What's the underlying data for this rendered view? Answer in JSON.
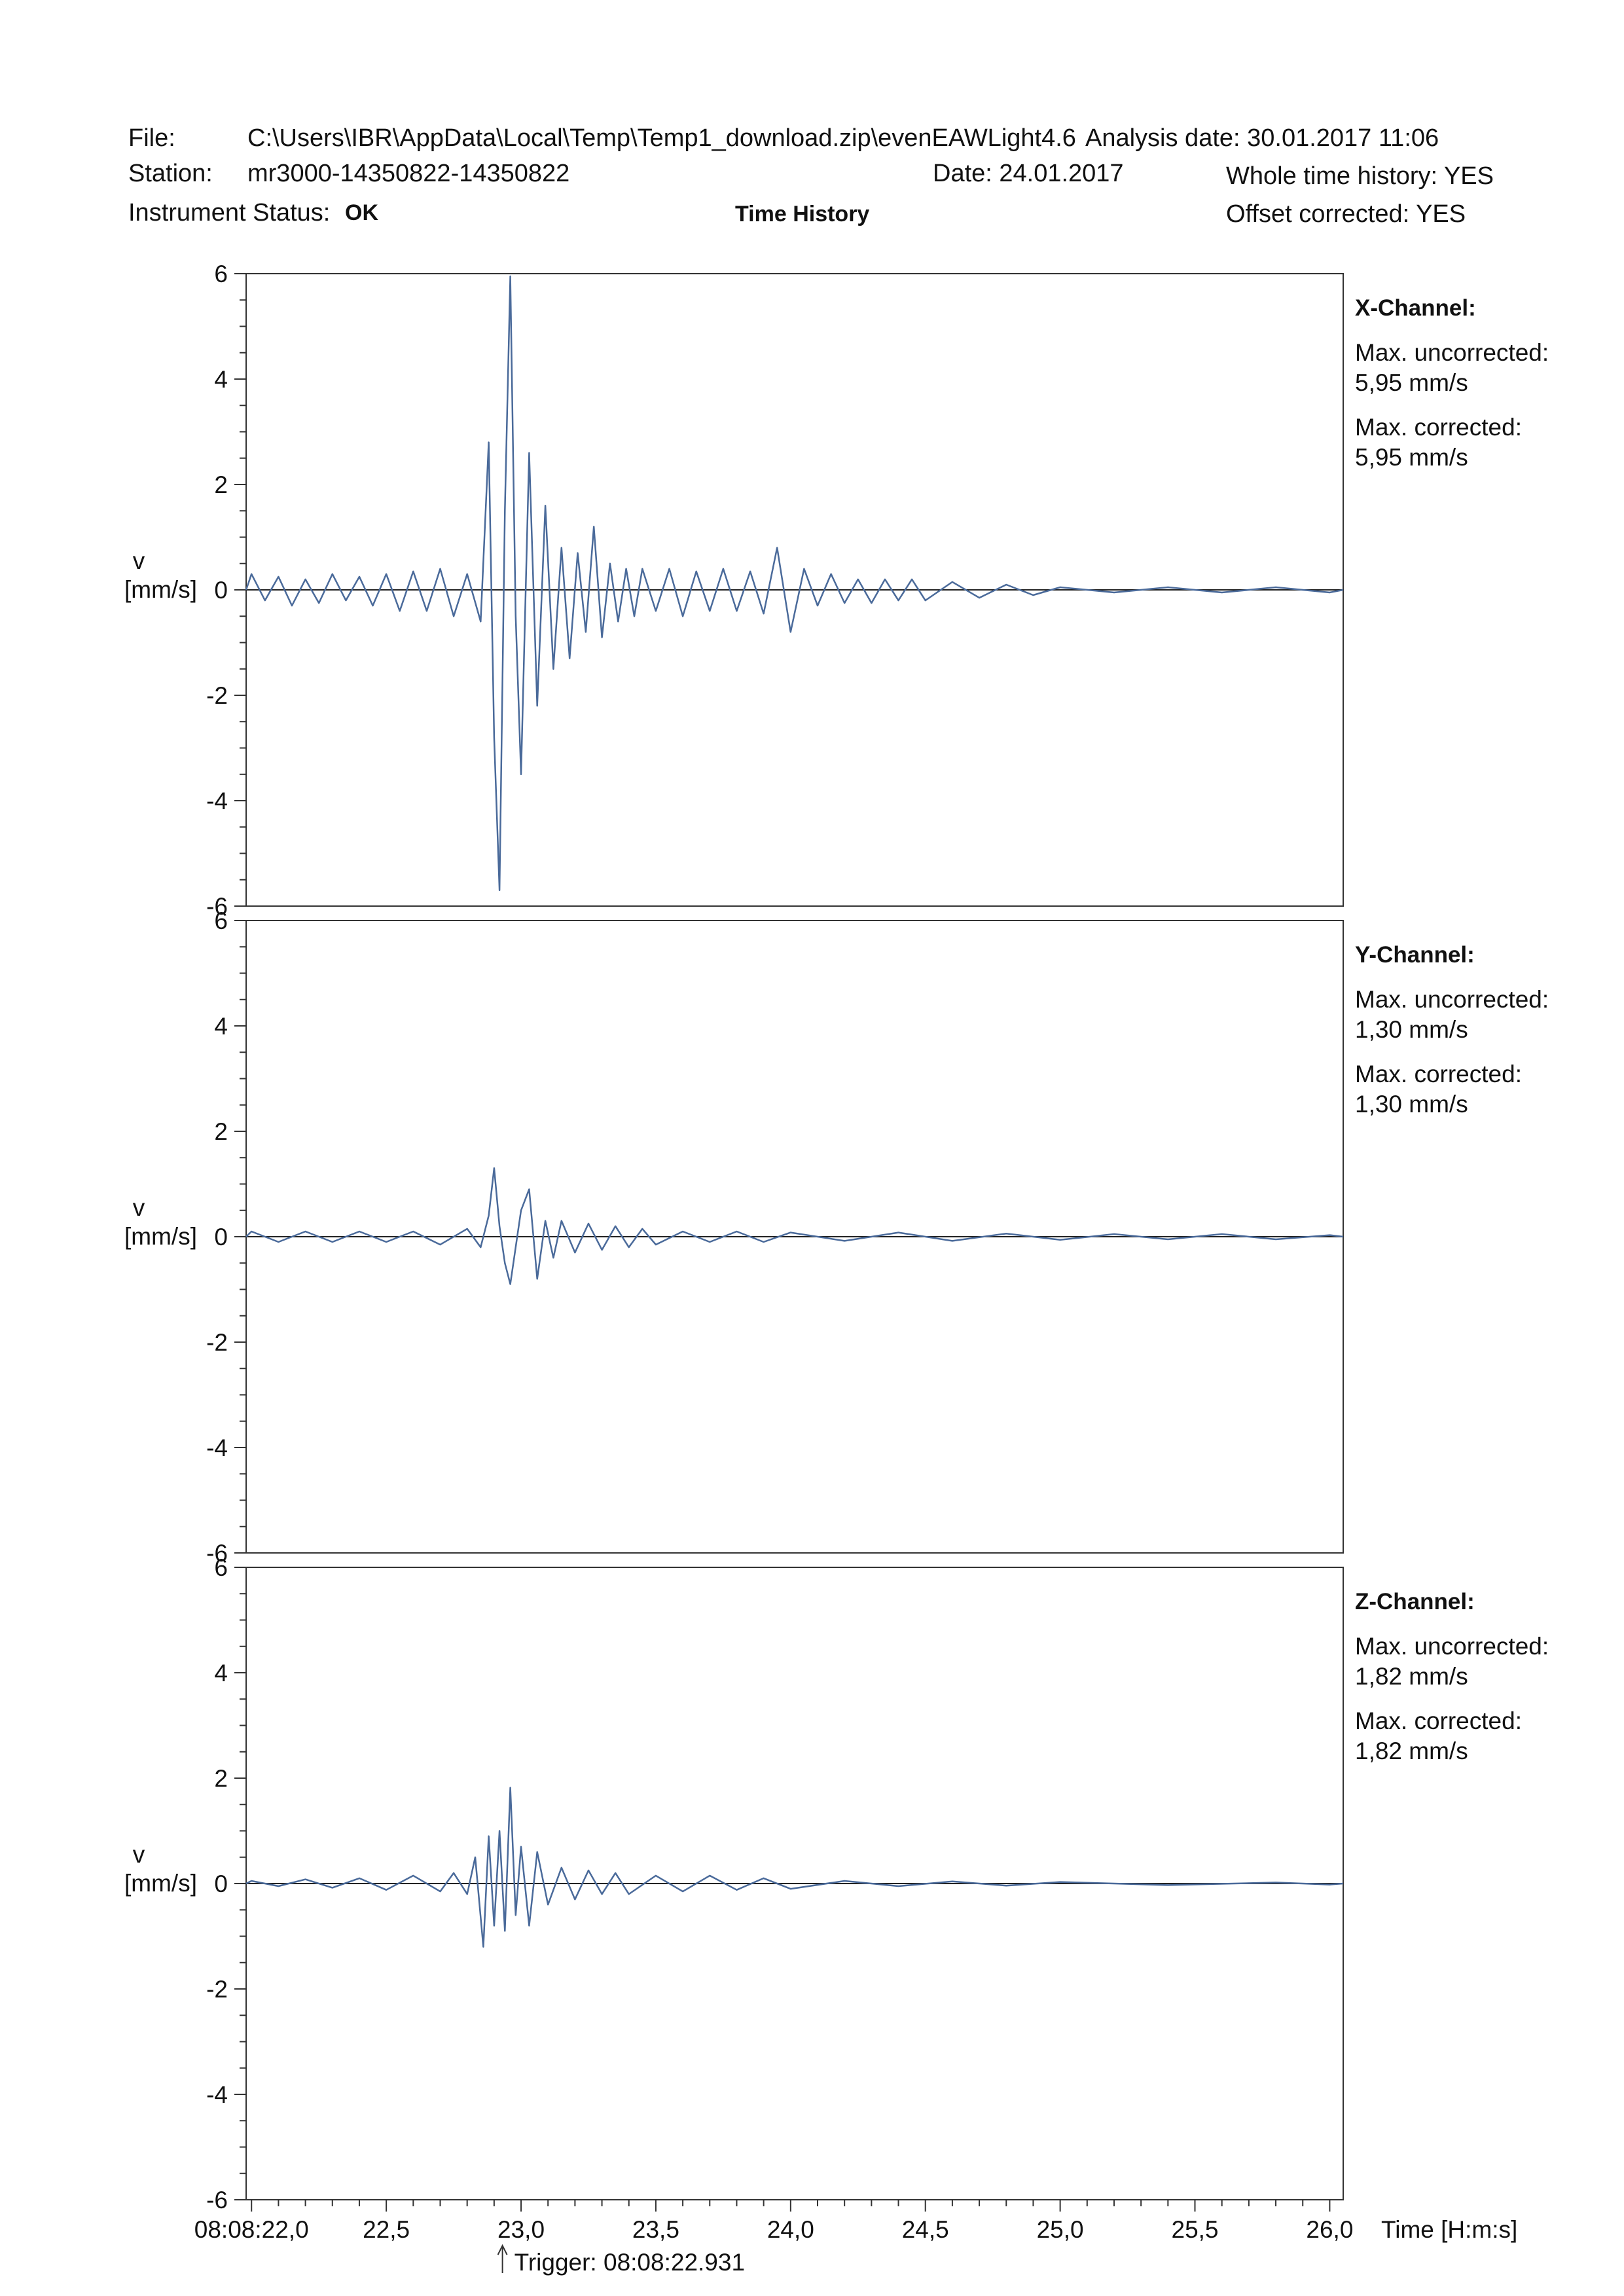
{
  "header": {
    "file_label": "File:",
    "file_path": "C:\\Users\\IBR\\AppData\\Local\\Temp\\Temp1_download.zip\\evenEAWLight4.6",
    "analysis_date": "Analysis date: 30.01.2017 11:06",
    "station_label": "Station:",
    "station_value": "mr3000-14350822-14350822",
    "date": "Date:  24.01.2017",
    "whole_time_history": "Whole time history: YES",
    "instrument_status_label": "Instrument Status:",
    "instrument_status_value": "OK",
    "center_title": "Time History",
    "offset_corrected": "Offset corrected: YES"
  },
  "chart_data": [
    {
      "type": "line",
      "channel": "X-Channel:",
      "max_uncorrected_label": "Max. uncorrected:",
      "max_uncorrected_value": "5,95 mm/s",
      "max_corrected_label": "Max. corrected:",
      "max_corrected_value": "5,95 mm/s",
      "ylabel": "v",
      "yunit": "[mm/s]",
      "ylim": [
        -6,
        6
      ],
      "yticks": [
        "-6",
        "-4",
        "-2",
        "0",
        "2",
        "4",
        "6"
      ],
      "xlim": [
        21.98,
        26.05
      ],
      "line_color": "#4a6a9a",
      "x": [
        21.98,
        22.0,
        22.05,
        22.1,
        22.15,
        22.2,
        22.25,
        22.3,
        22.35,
        22.4,
        22.45,
        22.5,
        22.55,
        22.6,
        22.65,
        22.7,
        22.75,
        22.8,
        22.85,
        22.88,
        22.9,
        22.92,
        22.94,
        22.96,
        22.98,
        23.0,
        23.03,
        23.06,
        23.09,
        23.12,
        23.15,
        23.18,
        23.21,
        23.24,
        23.27,
        23.3,
        23.33,
        23.36,
        23.39,
        23.42,
        23.45,
        23.5,
        23.55,
        23.6,
        23.65,
        23.7,
        23.75,
        23.8,
        23.85,
        23.9,
        23.95,
        24.0,
        24.05,
        24.1,
        24.15,
        24.2,
        24.25,
        24.3,
        24.35,
        24.4,
        24.45,
        24.5,
        24.6,
        24.7,
        24.8,
        24.9,
        25.0,
        25.2,
        25.4,
        25.6,
        25.8,
        26.0,
        26.05
      ],
      "y": [
        0.0,
        0.3,
        -0.2,
        0.25,
        -0.3,
        0.2,
        -0.25,
        0.3,
        -0.2,
        0.25,
        -0.3,
        0.3,
        -0.4,
        0.35,
        -0.4,
        0.4,
        -0.5,
        0.3,
        -0.6,
        2.8,
        -2.8,
        -5.7,
        1.5,
        5.95,
        -0.5,
        -3.5,
        2.6,
        -2.2,
        1.6,
        -1.5,
        0.8,
        -1.3,
        0.7,
        -0.8,
        1.2,
        -0.9,
        0.5,
        -0.6,
        0.4,
        -0.5,
        0.4,
        -0.4,
        0.4,
        -0.5,
        0.35,
        -0.4,
        0.4,
        -0.4,
        0.35,
        -0.45,
        0.8,
        -0.8,
        0.4,
        -0.3,
        0.3,
        -0.25,
        0.2,
        -0.25,
        0.2,
        -0.2,
        0.2,
        -0.2,
        0.15,
        -0.15,
        0.1,
        -0.1,
        0.05,
        -0.05,
        0.05,
        -0.05,
        0.05,
        -0.05,
        0.0
      ]
    },
    {
      "type": "line",
      "channel": "Y-Channel:",
      "max_uncorrected_label": "Max. uncorrected:",
      "max_uncorrected_value": "1,30 mm/s",
      "max_corrected_label": "Max. corrected:",
      "max_corrected_value": "1,30 mm/s",
      "ylabel": "v",
      "yunit": "[mm/s]",
      "ylim": [
        -6,
        6
      ],
      "yticks": [
        "-6",
        "-4",
        "-2",
        "0",
        "2",
        "4",
        "6"
      ],
      "xlim": [
        21.98,
        26.05
      ],
      "line_color": "#4a6a9a",
      "x": [
        21.98,
        22.0,
        22.1,
        22.2,
        22.3,
        22.4,
        22.5,
        22.6,
        22.7,
        22.8,
        22.85,
        22.88,
        22.9,
        22.92,
        22.94,
        22.96,
        22.98,
        23.0,
        23.03,
        23.06,
        23.09,
        23.12,
        23.15,
        23.2,
        23.25,
        23.3,
        23.35,
        23.4,
        23.45,
        23.5,
        23.6,
        23.7,
        23.8,
        23.9,
        24.0,
        24.2,
        24.4,
        24.6,
        24.8,
        25.0,
        25.2,
        25.4,
        25.6,
        25.8,
        26.0,
        26.05
      ],
      "y": [
        0.0,
        0.1,
        -0.1,
        0.1,
        -0.1,
        0.1,
        -0.1,
        0.1,
        -0.15,
        0.15,
        -0.2,
        0.4,
        1.3,
        0.2,
        -0.5,
        -0.9,
        -0.2,
        0.5,
        0.9,
        -0.8,
        0.3,
        -0.4,
        0.3,
        -0.3,
        0.25,
        -0.25,
        0.2,
        -0.2,
        0.15,
        -0.15,
        0.1,
        -0.1,
        0.1,
        -0.1,
        0.08,
        -0.08,
        0.08,
        -0.08,
        0.06,
        -0.06,
        0.05,
        -0.05,
        0.05,
        -0.05,
        0.03,
        0.0
      ]
    },
    {
      "type": "line",
      "channel": "Z-Channel:",
      "max_uncorrected_label": "Max. uncorrected:",
      "max_uncorrected_value": "1,82 mm/s",
      "max_corrected_label": "Max. corrected:",
      "max_corrected_value": "1,82 mm/s",
      "ylabel": "v",
      "yunit": "[mm/s]",
      "ylim": [
        -6,
        6
      ],
      "yticks": [
        "-6",
        "-4",
        "-2",
        "0",
        "2",
        "4",
        "6"
      ],
      "xlim": [
        21.98,
        26.05
      ],
      "line_color": "#4a6a9a",
      "x": [
        21.98,
        22.0,
        22.1,
        22.2,
        22.3,
        22.4,
        22.5,
        22.6,
        22.7,
        22.75,
        22.8,
        22.83,
        22.86,
        22.88,
        22.9,
        22.92,
        22.94,
        22.96,
        22.98,
        23.0,
        23.03,
        23.06,
        23.1,
        23.15,
        23.2,
        23.25,
        23.3,
        23.35,
        23.4,
        23.5,
        23.6,
        23.7,
        23.8,
        23.9,
        24.0,
        24.2,
        24.4,
        24.6,
        24.8,
        25.0,
        25.4,
        25.8,
        26.0,
        26.05
      ],
      "y": [
        0.0,
        0.05,
        -0.05,
        0.08,
        -0.08,
        0.1,
        -0.12,
        0.15,
        -0.15,
        0.2,
        -0.2,
        0.5,
        -1.2,
        0.9,
        -0.8,
        1.0,
        -0.9,
        1.82,
        -0.6,
        0.7,
        -0.8,
        0.6,
        -0.4,
        0.3,
        -0.3,
        0.25,
        -0.2,
        0.2,
        -0.2,
        0.15,
        -0.15,
        0.15,
        -0.12,
        0.1,
        -0.1,
        0.05,
        -0.05,
        0.04,
        -0.04,
        0.03,
        -0.03,
        0.02,
        -0.02,
        0.0
      ]
    }
  ],
  "xaxis": {
    "ticks": [
      22.0,
      22.5,
      23.0,
      23.5,
      24.0,
      24.5,
      25.0,
      25.5,
      26.0
    ],
    "tick_labels": [
      "08:08:22,0",
      "22,5",
      "23,0",
      "23,5",
      "24,0",
      "24,5",
      "25,0",
      "25,5",
      "26,0"
    ],
    "xlabel": "Time [H:m:s]",
    "trigger_label": "Trigger:  08:08:22.931",
    "trigger_x": 22.931
  }
}
